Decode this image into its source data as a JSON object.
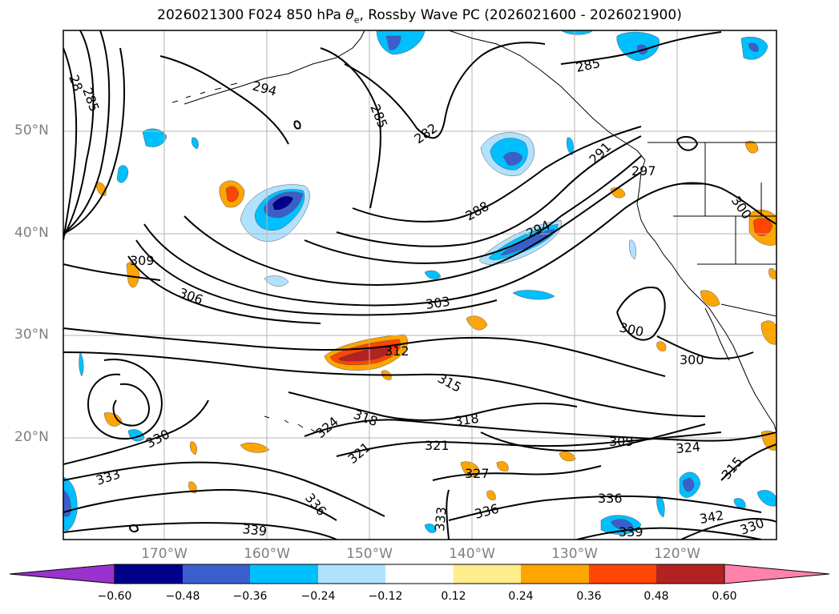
{
  "title": {
    "prefix": "2026021300 F024 850 hPa ",
    "theta": "θ",
    "sub": "e",
    "suffix": ", Rossby Wave PC (2026021600 - 2026021900)"
  },
  "lat_labels": [
    "50°N",
    "40°N",
    "30°N",
    "20°N"
  ],
  "lon_labels": [
    "170°W",
    "160°W",
    "150°W",
    "140°W",
    "130°W",
    "120°W"
  ],
  "contour_labels": [
    "28",
    "285",
    "294",
    "285",
    "282",
    "285",
    "291",
    "297",
    "300",
    "288",
    "294",
    "309",
    "306",
    "303",
    "300",
    "300",
    "312",
    "315",
    "318",
    "318",
    "324",
    "321",
    "309",
    "324",
    "330",
    "333",
    "321",
    "327",
    "336",
    "336",
    "336",
    "333",
    "339",
    "339",
    "342",
    "330",
    "315"
  ],
  "colorbar": {
    "colors": [
      "#9a32cd",
      "#00008b",
      "#3a5fcd",
      "#00bfff",
      "#b0e2ff",
      "#ffffff",
      "#ffec8b",
      "#ffa500",
      "#ff4500",
      "#b22222",
      "#ff82ab"
    ],
    "ticks": [
      "−0.60",
      "−0.48",
      "−0.36",
      "−0.24",
      "−0.12",
      "0.12",
      "0.24",
      "0.36",
      "0.48",
      "0.60"
    ]
  },
  "shading": {
    "neg_light": "#b0e2ff",
    "neg_mid": "#00bfff",
    "neg_strong": "#3a5fcd",
    "neg_max": "#00008b",
    "pos_light": "#ffec8b",
    "pos_mid": "#ffa500",
    "pos_strong": "#ff4500",
    "pos_max": "#b22222"
  }
}
